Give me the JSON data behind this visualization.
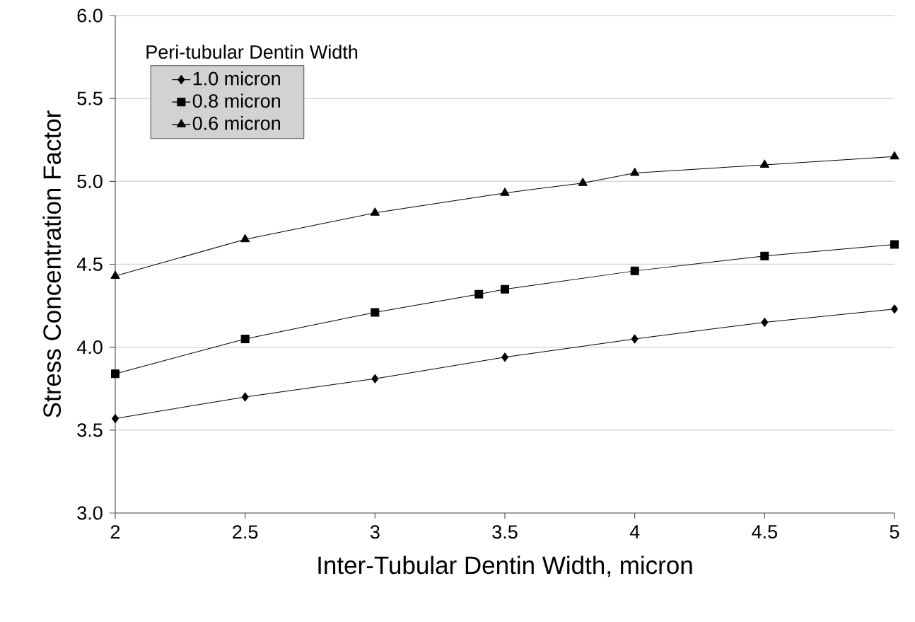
{
  "chart_data": {
    "type": "line",
    "xlabel": "Inter-Tubular Dentin Width, micron",
    "ylabel": "Stress Concentration Factor",
    "legend_title": "Peri-tubular Dentin Width",
    "xlim": [
      2,
      5
    ],
    "ylim": [
      3.0,
      6.0
    ],
    "xticks": [
      2,
      2.5,
      3,
      3.5,
      4,
      4.5,
      5
    ],
    "yticks": [
      {
        "value": 3.0,
        "label": "3.0"
      },
      {
        "value": 3.5,
        "label": "3.5"
      },
      {
        "value": 4.0,
        "label": "4.0"
      },
      {
        "value": 4.5,
        "label": "4.5"
      },
      {
        "value": 5.0,
        "label": "5.0"
      },
      {
        "value": 5.5,
        "label": "5.5"
      },
      {
        "value": 6.0,
        "label": "6.0"
      }
    ],
    "grid": "y",
    "legend": "top left",
    "line_style": "solid",
    "series": [
      {
        "name": "1.0 micron",
        "color": "#000000",
        "marker": "diamond",
        "x": [
          2,
          2.5,
          3,
          3.5,
          4,
          4.5,
          5
        ],
        "values": [
          3.57,
          3.7,
          3.81,
          3.94,
          4.05,
          4.15,
          4.23
        ]
      },
      {
        "name": "0.8 micron",
        "color": "#000000",
        "marker": "square",
        "x": [
          2,
          2.5,
          3,
          3.4,
          3.5,
          4,
          4.5,
          5
        ],
        "values": [
          3.84,
          4.05,
          4.21,
          4.32,
          4.35,
          4.46,
          4.55,
          4.62
        ]
      },
      {
        "name": "0.6 micron",
        "color": "#000000",
        "marker": "triangle",
        "x": [
          2,
          2.5,
          3,
          3.5,
          3.8,
          4,
          4.5,
          5
        ],
        "values": [
          4.43,
          4.65,
          4.81,
          4.93,
          4.99,
          5.05,
          5.1,
          5.15
        ]
      }
    ]
  }
}
